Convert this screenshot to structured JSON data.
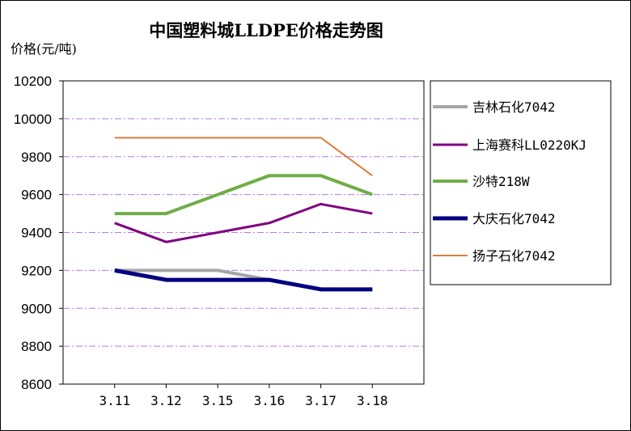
{
  "chart_data": {
    "type": "line",
    "title": "中国塑料城LLDPE价格走势图",
    "ylabel": "价格(元/吨)",
    "xlabel": "",
    "categories": [
      "3.11",
      "3.12",
      "3.15",
      "3.16",
      "3.17",
      "3.18"
    ],
    "ylim": [
      8600,
      10200
    ],
    "yticks": [
      8600,
      8800,
      9000,
      9200,
      9400,
      9600,
      9800,
      10000,
      10200
    ],
    "grid": "horizontal dash-dot",
    "legend_position": "right",
    "series": [
      {
        "name": "吉林石化7042",
        "color": "#a6a6a6",
        "values": [
          9200,
          9200,
          9200,
          9150,
          9100,
          9100
        ]
      },
      {
        "name": "上海赛科LL0220KJ",
        "color": "#800080",
        "values": [
          9450,
          9350,
          9400,
          9450,
          9550,
          9500
        ]
      },
      {
        "name": "沙特218W",
        "color": "#70ad47",
        "values": [
          9500,
          9500,
          9600,
          9700,
          9700,
          9600
        ]
      },
      {
        "name": "大庆石化7042",
        "color": "#000080",
        "values": [
          9200,
          9150,
          9150,
          9150,
          9100,
          9100
        ]
      },
      {
        "name": "扬子石化7042",
        "color": "#e07b39",
        "values": [
          9900,
          9900,
          9900,
          9900,
          9900,
          9700
        ]
      }
    ]
  }
}
